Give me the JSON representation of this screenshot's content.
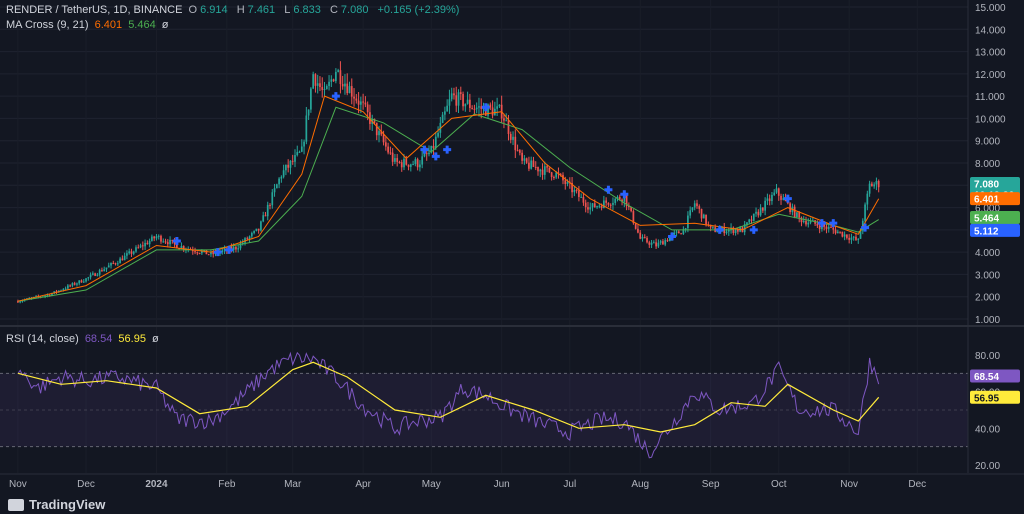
{
  "symbol_line": {
    "symbol": "RENDER / TetherUS, 1D, BINANCE",
    "o_label": "O",
    "o": "6.914",
    "h_label": "H",
    "h": "7.461",
    "l_label": "L",
    "l": "6.833",
    "c_label": "C",
    "c": "7.080",
    "change": "+0.165 (+2.39%)"
  },
  "ma_line": {
    "label": "MA Cross (9, 21)",
    "fast": "6.401",
    "slow": "5.464",
    "eye": "ø"
  },
  "rsi_line": {
    "label": "RSI (14, close)",
    "rsi": "68.54",
    "ma": "56.95",
    "eye": "ø"
  },
  "brand": "TradingView",
  "colors": {
    "up": "#26a69a",
    "down": "#ef5350",
    "fast_ma": "#ff6d00",
    "slow_ma": "#4caf50",
    "rsi": "#7e57c2",
    "rsi_ma": "#ffeb3b",
    "cross": "#2962ff"
  },
  "chart_data": [
    {
      "type": "candlestick",
      "title": "RENDER / TetherUS, 1D, BINANCE",
      "y_ticks": [
        "15.000",
        "14.000",
        "13.000",
        "12.000",
        "11.000",
        "10.000",
        "9.000",
        "8.000",
        "7.000",
        "6.000",
        "5.000",
        "4.000",
        "3.000",
        "2.000",
        "1.000"
      ],
      "ylim": [
        0.7,
        15.2
      ],
      "x_ticks": [
        "Nov",
        "Dec",
        "2024",
        "Feb",
        "Mar",
        "Apr",
        "May",
        "Jun",
        "Jul",
        "Aug",
        "Sep",
        "Oct",
        "Nov",
        "Dec"
      ],
      "last_price_tag": {
        "value": "7.080",
        "countdown": "16:13:26"
      },
      "value_tags": [
        "6.401",
        "5.464",
        "5.112"
      ],
      "close_path": [
        [
          "2023-11-01",
          1.8
        ],
        [
          "2023-11-15",
          2.1
        ],
        [
          "2023-12-01",
          2.8
        ],
        [
          "2023-12-15",
          3.6
        ],
        [
          "2024-01-01",
          4.7
        ],
        [
          "2024-01-10",
          4.3
        ],
        [
          "2024-01-25",
          3.9
        ],
        [
          "2024-02-05",
          4.2
        ],
        [
          "2024-02-15",
          5.0
        ],
        [
          "2024-02-25",
          7.5
        ],
        [
          "2024-03-05",
          8.5
        ],
        [
          "2024-03-10",
          12.0
        ],
        [
          "2024-03-15",
          11.0
        ],
        [
          "2024-03-20",
          12.2
        ],
        [
          "2024-04-01",
          10.5
        ],
        [
          "2024-04-15",
          8.0
        ],
        [
          "2024-04-25",
          8.0
        ],
        [
          "2024-05-01",
          8.5
        ],
        [
          "2024-05-10",
          11.0
        ],
        [
          "2024-05-20",
          10.5
        ],
        [
          "2024-06-01",
          10.3
        ],
        [
          "2024-06-10",
          8.0
        ],
        [
          "2024-06-25",
          7.5
        ],
        [
          "2024-07-10",
          6.0
        ],
        [
          "2024-07-25",
          6.5
        ],
        [
          "2024-08-01",
          4.6
        ],
        [
          "2024-08-08",
          4.3
        ],
        [
          "2024-08-20",
          5.0
        ],
        [
          "2024-08-25",
          6.2
        ],
        [
          "2024-09-01",
          5.0
        ],
        [
          "2024-09-15",
          5.0
        ],
        [
          "2024-09-30",
          6.7
        ],
        [
          "2024-10-10",
          5.5
        ],
        [
          "2024-10-25",
          5.0
        ],
        [
          "2024-11-05",
          4.5
        ],
        [
          "2024-11-10",
          7.0
        ],
        [
          "2024-11-14",
          7.08
        ]
      ],
      "fast_ma": [
        [
          "2023-11-01",
          1.8
        ],
        [
          "2023-12-01",
          2.5
        ],
        [
          "2024-01-01",
          4.3
        ],
        [
          "2024-01-25",
          4.0
        ],
        [
          "2024-02-15",
          4.7
        ],
        [
          "2024-03-05",
          7.5
        ],
        [
          "2024-03-15",
          11.0
        ],
        [
          "2024-04-01",
          10.3
        ],
        [
          "2024-04-20",
          8.2
        ],
        [
          "2024-05-10",
          10.0
        ],
        [
          "2024-06-01",
          10.3
        ],
        [
          "2024-06-20",
          8.0
        ],
        [
          "2024-07-10",
          6.4
        ],
        [
          "2024-08-01",
          5.2
        ],
        [
          "2024-08-25",
          5.3
        ],
        [
          "2024-09-15",
          5.0
        ],
        [
          "2024-10-05",
          6.0
        ],
        [
          "2024-10-25",
          5.2
        ],
        [
          "2024-11-05",
          4.8
        ],
        [
          "2024-11-14",
          6.4
        ]
      ],
      "slow_ma": [
        [
          "2023-11-01",
          1.8
        ],
        [
          "2023-12-01",
          2.3
        ],
        [
          "2024-01-01",
          4.1
        ],
        [
          "2024-01-25",
          4.1
        ],
        [
          "2024-02-15",
          4.5
        ],
        [
          "2024-03-05",
          6.5
        ],
        [
          "2024-03-20",
          10.5
        ],
        [
          "2024-04-10",
          9.8
        ],
        [
          "2024-05-01",
          8.5
        ],
        [
          "2024-05-20",
          10.2
        ],
        [
          "2024-06-10",
          9.5
        ],
        [
          "2024-07-01",
          7.8
        ],
        [
          "2024-07-25",
          6.2
        ],
        [
          "2024-08-15",
          5.0
        ],
        [
          "2024-09-10",
          5.0
        ],
        [
          "2024-10-01",
          5.7
        ],
        [
          "2024-10-25",
          5.2
        ],
        [
          "2024-11-05",
          4.9
        ],
        [
          "2024-11-14",
          5.46
        ]
      ],
      "cross_markers": [
        [
          "2024-01-10",
          4.5
        ],
        [
          "2024-01-28",
          4.0
        ],
        [
          "2024-02-02",
          4.1
        ],
        [
          "2024-03-20",
          11.0
        ],
        [
          "2024-04-28",
          8.6
        ],
        [
          "2024-05-03",
          8.3
        ],
        [
          "2024-05-08",
          8.6
        ],
        [
          "2024-05-25",
          10.5
        ],
        [
          "2024-07-18",
          6.8
        ],
        [
          "2024-07-25",
          6.6
        ],
        [
          "2024-08-15",
          4.7
        ],
        [
          "2024-09-05",
          5.0
        ],
        [
          "2024-09-20",
          5.0
        ],
        [
          "2024-10-05",
          6.4
        ],
        [
          "2024-10-20",
          5.3
        ],
        [
          "2024-10-25",
          5.3
        ],
        [
          "2024-11-08",
          5.1
        ]
      ]
    },
    {
      "type": "line",
      "title": "RSI (14, close)",
      "y_ticks": [
        "80.00",
        "60.00",
        "40.00",
        "20.00"
      ],
      "ylim": [
        16,
        88
      ],
      "bands": [
        70,
        30
      ],
      "value_tags": [
        "68.54",
        "56.95"
      ],
      "rsi": [
        [
          "2023-11-01",
          72
        ],
        [
          "2023-11-10",
          62
        ],
        [
          "2023-11-20",
          68
        ],
        [
          "2023-12-01",
          66
        ],
        [
          "2023-12-15",
          68
        ],
        [
          "2024-01-01",
          62
        ],
        [
          "2024-01-10",
          45
        ],
        [
          "2024-01-25",
          44
        ],
        [
          "2024-02-05",
          54
        ],
        [
          "2024-02-20",
          72
        ],
        [
          "2024-03-01",
          78
        ],
        [
          "2024-03-10",
          78
        ],
        [
          "2024-03-20",
          68
        ],
        [
          "2024-04-01",
          52
        ],
        [
          "2024-04-15",
          40
        ],
        [
          "2024-04-25",
          44
        ],
        [
          "2024-05-05",
          46
        ],
        [
          "2024-05-15",
          62
        ],
        [
          "2024-05-25",
          58
        ],
        [
          "2024-06-05",
          50
        ],
        [
          "2024-06-20",
          42
        ],
        [
          "2024-07-01",
          38
        ],
        [
          "2024-07-15",
          45
        ],
        [
          "2024-07-25",
          44
        ],
        [
          "2024-08-05",
          27
        ],
        [
          "2024-08-15",
          42
        ],
        [
          "2024-08-25",
          60
        ],
        [
          "2024-09-05",
          50
        ],
        [
          "2024-09-20",
          54
        ],
        [
          "2024-10-01",
          72
        ],
        [
          "2024-10-10",
          50
        ],
        [
          "2024-10-25",
          50
        ],
        [
          "2024-11-05",
          38
        ],
        [
          "2024-11-10",
          76
        ],
        [
          "2024-11-14",
          68.54
        ]
      ],
      "rsi_ma": [
        [
          "2023-11-01",
          70
        ],
        [
          "2023-11-20",
          64
        ],
        [
          "2023-12-10",
          66
        ],
        [
          "2024-01-01",
          62
        ],
        [
          "2024-01-20",
          48
        ],
        [
          "2024-02-10",
          52
        ],
        [
          "2024-03-01",
          72
        ],
        [
          "2024-03-10",
          76
        ],
        [
          "2024-03-25",
          68
        ],
        [
          "2024-04-15",
          50
        ],
        [
          "2024-05-05",
          46
        ],
        [
          "2024-05-25",
          58
        ],
        [
          "2024-06-15",
          50
        ],
        [
          "2024-07-05",
          40
        ],
        [
          "2024-07-25",
          42
        ],
        [
          "2024-08-10",
          38
        ],
        [
          "2024-08-25",
          42
        ],
        [
          "2024-09-10",
          54
        ],
        [
          "2024-09-25",
          52
        ],
        [
          "2024-10-05",
          64
        ],
        [
          "2024-10-25",
          50
        ],
        [
          "2024-11-05",
          44
        ],
        [
          "2024-11-14",
          56.95
        ]
      ]
    }
  ]
}
